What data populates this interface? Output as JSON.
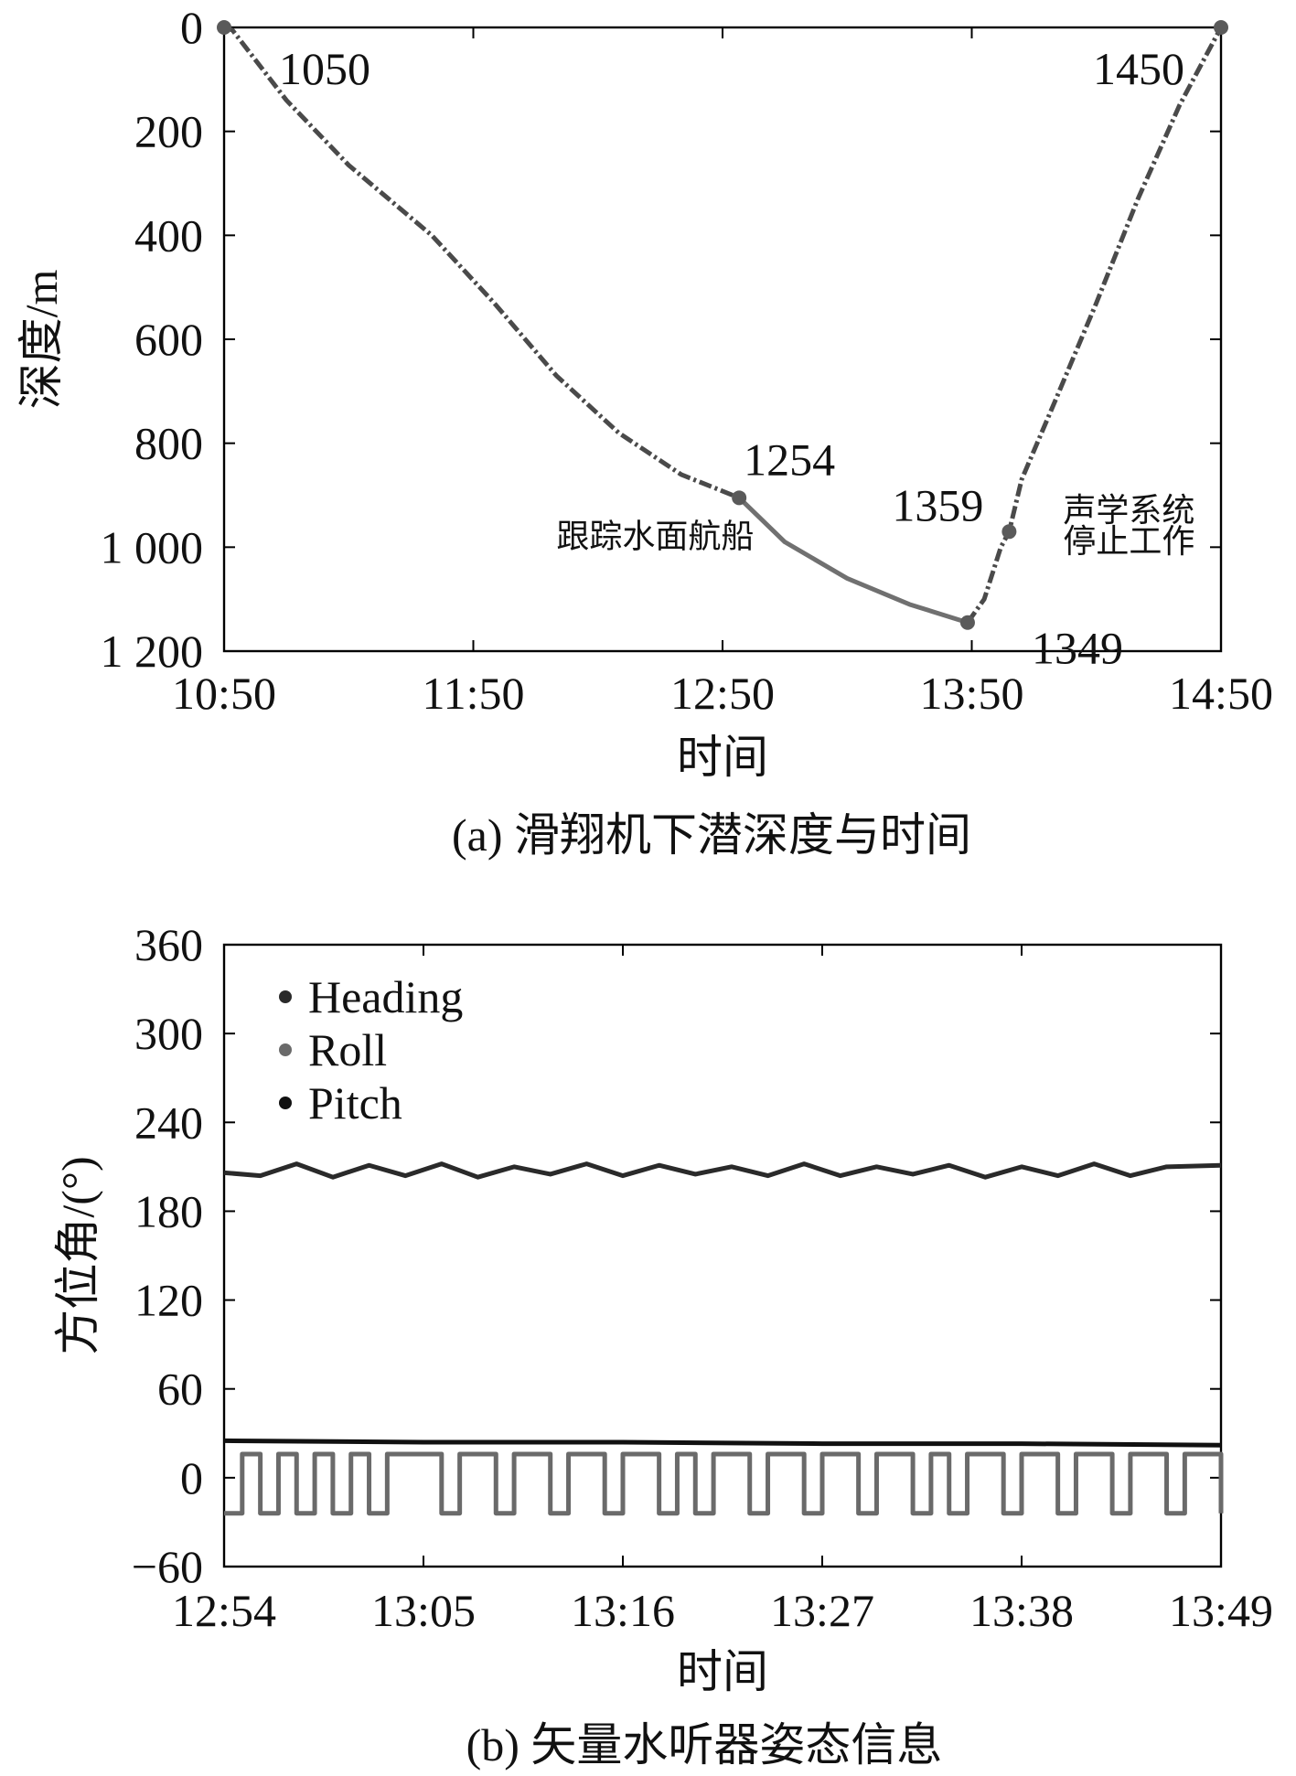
{
  "chart_data": [
    {
      "type": "line",
      "caption": "(a) 滑翔机下潜深度与时间",
      "xlabel": "时间",
      "ylabel": "深度/m",
      "x_ticks": [
        "10:50",
        "11:50",
        "12:50",
        "13:50",
        "14:50"
      ],
      "y_ticks": [
        "0",
        "200",
        "400",
        "600",
        "800",
        "1 000",
        "1 200"
      ],
      "xlim": [
        "10:50",
        "14:50"
      ],
      "ylim": [
        0,
        1200
      ],
      "y_inverted": true,
      "colors": {
        "descent": "#4a4a4a",
        "tracking": "#707070",
        "ascent": "#4a4a4a",
        "marker": "#5a5a5a"
      },
      "series": [
        {
          "segment": "descent",
          "x": [
            "10:50",
            "10:52",
            "11:05",
            "11:20",
            "11:40",
            "11:55",
            "12:10",
            "12:25",
            "12:40",
            "12:54"
          ],
          "y": [
            0,
            5,
            140,
            265,
            400,
            530,
            670,
            780,
            860,
            905
          ]
        },
        {
          "segment": "tracking",
          "x": [
            "12:54",
            "13:05",
            "13:20",
            "13:35",
            "13:49"
          ],
          "y": [
            905,
            990,
            1060,
            1110,
            1145
          ]
        },
        {
          "segment": "ascent",
          "x": [
            "13:49",
            "13:53",
            "13:57",
            "13:59",
            "14:02",
            "14:10",
            "14:20",
            "14:30",
            "14:40",
            "14:46",
            "14:50"
          ],
          "y": [
            1145,
            1100,
            1000,
            970,
            870,
            720,
            530,
            330,
            150,
            60,
            0
          ]
        }
      ],
      "markers": [
        {
          "x": "10:50",
          "y": 0
        },
        {
          "x": "12:54",
          "y": 905
        },
        {
          "x": "13:49",
          "y": 1145
        },
        {
          "x": "13:59",
          "y": 970
        },
        {
          "x": "14:50",
          "y": 0
        }
      ],
      "annotations": [
        {
          "text": "1050",
          "x": "10:50",
          "y": 0
        },
        {
          "text": "1254",
          "x": "12:54",
          "y": 905
        },
        {
          "text": "1359",
          "x": "13:59",
          "y": 970
        },
        {
          "text": "1349",
          "x": "13:49",
          "y": 1145
        },
        {
          "text": "1450",
          "x": "14:50",
          "y": 0
        },
        {
          "text": "跟踪水面航船",
          "x": "12:10",
          "y": 1000
        },
        {
          "text": "声学系统",
          "x": "14:12",
          "y": 950
        },
        {
          "text": "停止工作",
          "x": "14:12",
          "y": 1010
        }
      ]
    },
    {
      "type": "line",
      "caption": "(b) 矢量水听器姿态信息",
      "xlabel": "时间",
      "ylabel": "方位角/(°)",
      "x_ticks": [
        "12:54",
        "13:05",
        "13:16",
        "13:27",
        "13:38",
        "13:49"
      ],
      "y_ticks": [
        "360",
        "300",
        "240",
        "180",
        "120",
        "60",
        "0",
        "−60"
      ],
      "xlim": [
        "12:54",
        "13:49"
      ],
      "ylim": [
        -60,
        360
      ],
      "legend": [
        "Heading",
        "Roll",
        "Pitch"
      ],
      "legend_position": "top-left",
      "colors": {
        "Heading": "#2a2a2a",
        "Roll": "#6a6a6a",
        "Pitch": "#111111"
      },
      "series": [
        {
          "name": "Heading",
          "x": [
            "12:54",
            "12:56",
            "12:58",
            "13:00",
            "13:02",
            "13:04",
            "13:06",
            "13:08",
            "13:10",
            "13:12",
            "13:14",
            "13:16",
            "13:18",
            "13:20",
            "13:22",
            "13:24",
            "13:26",
            "13:28",
            "13:30",
            "13:32",
            "13:34",
            "13:36",
            "13:38",
            "13:40",
            "13:42",
            "13:44",
            "13:46",
            "13:49"
          ],
          "values": [
            206,
            204,
            212,
            203,
            211,
            204,
            212,
            203,
            210,
            205,
            212,
            204,
            211,
            205,
            210,
            204,
            212,
            204,
            210,
            205,
            211,
            203,
            210,
            204,
            212,
            204,
            210,
            211
          ]
        },
        {
          "name": "Roll",
          "pattern": "square wave alternating between high and low",
          "high": 16,
          "low": -24,
          "x": [
            "12:54",
            "12:55",
            "12:56",
            "12:57",
            "12:58",
            "12:59",
            "13:00",
            "13:01",
            "13:02",
            "13:03",
            "13:04",
            "13:06",
            "13:07",
            "13:09",
            "13:10",
            "13:12",
            "13:13",
            "13:15",
            "13:16",
            "13:18",
            "13:19",
            "13:20",
            "13:21",
            "13:23",
            "13:24",
            "13:26",
            "13:27",
            "13:29",
            "13:30",
            "13:32",
            "13:33",
            "13:34",
            "13:35",
            "13:37",
            "13:38",
            "13:40",
            "13:41",
            "13:43",
            "13:44",
            "13:46",
            "13:47",
            "13:49"
          ],
          "values": [
            -24,
            16,
            -24,
            16,
            -24,
            16,
            -24,
            16,
            -24,
            16,
            16,
            -24,
            16,
            -24,
            16,
            -24,
            16,
            -24,
            16,
            -24,
            16,
            -24,
            16,
            -24,
            16,
            -24,
            16,
            -24,
            16,
            -24,
            16,
            -24,
            16,
            -24,
            16,
            -24,
            16,
            -24,
            16,
            -24,
            16,
            -24
          ]
        },
        {
          "name": "Pitch",
          "x": [
            "12:54",
            "13:05",
            "13:16",
            "13:27",
            "13:38",
            "13:49"
          ],
          "values": [
            25,
            24,
            24,
            23,
            23,
            22
          ]
        }
      ]
    }
  ]
}
